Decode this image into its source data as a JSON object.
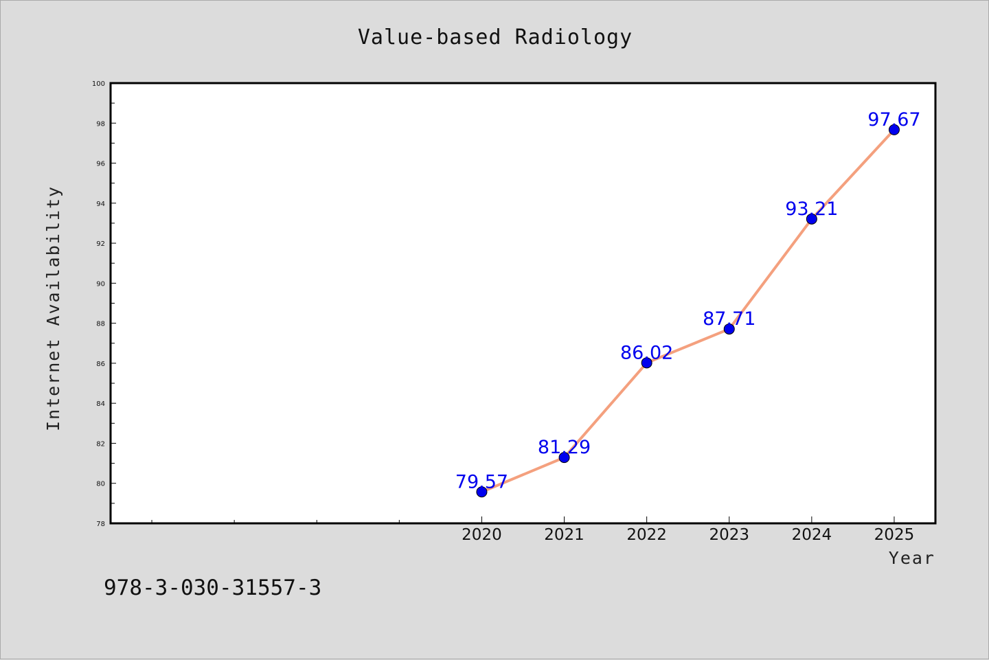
{
  "chart_data": {
    "type": "line",
    "title": "Value-based Radiology",
    "xlabel": "Year",
    "ylabel": "Internet Availability",
    "x": [
      2020,
      2021,
      2022,
      2023,
      2024,
      2025
    ],
    "series": [
      {
        "values": [
          79.57,
          81.29,
          86.02,
          87.71,
          93.21,
          97.67
        ]
      }
    ],
    "xlim": [
      2015.5,
      2025.5
    ],
    "ylim": [
      78,
      100
    ],
    "yticks": [
      78,
      80,
      82,
      84,
      86,
      88,
      90,
      92,
      94,
      96,
      98,
      100
    ],
    "xtick_labels": [
      "2020",
      "2021",
      "2022",
      "2023",
      "2024",
      "2025"
    ],
    "data_labels": [
      "79.57",
      "81.29",
      "86.02",
      "87.71",
      "93.21",
      "97.67"
    ],
    "grid": false,
    "colors": {
      "line": "#f4a07e",
      "marker": "#0000ee",
      "label": "#0000ee",
      "background": "#dcdcdc",
      "plot_bg": "#ffffff"
    }
  },
  "footer": {
    "text": "978-3-030-31557-3"
  }
}
